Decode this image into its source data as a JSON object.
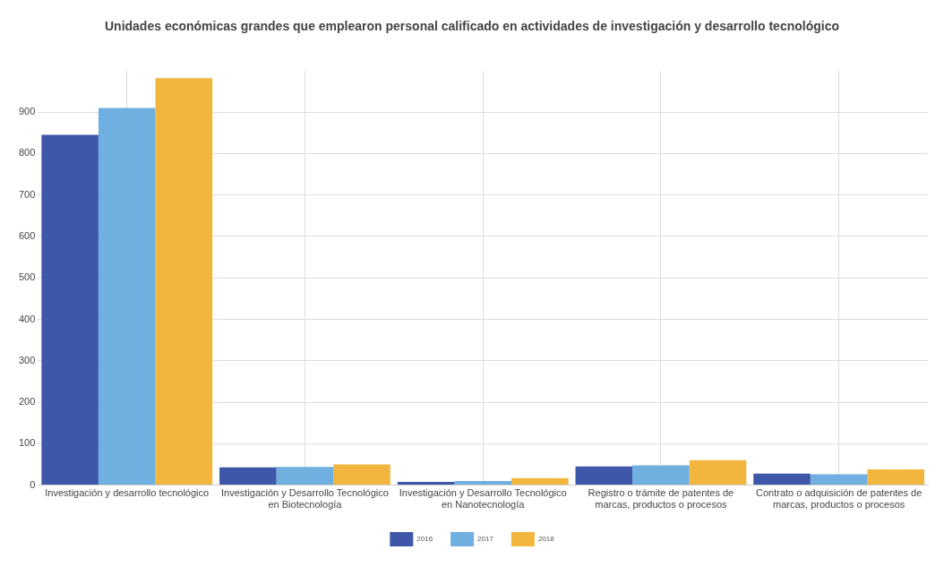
{
  "chart_data": {
    "type": "bar",
    "title": "Unidades económicas grandes que emplearon personal calificado en actividades de investigación y desarrollo tecnológico",
    "categories": [
      "Investigación y desarrollo tecnológico",
      "Investigación y Desarrollo Tecnológico\nen Biotecnología",
      "Investigación y Desarrollo Tecnológico\nen Nanotecnología",
      "Registro o trámite de patentes de\nmarcas, productos o procesos",
      "Contrato o adquisición de patentes de\nmarcas, productos o procesos"
    ],
    "series": [
      {
        "name": "2016",
        "color": "#3f57a9",
        "values": [
          845,
          43,
          8,
          45,
          28
        ]
      },
      {
        "name": "2017",
        "color": "#70b0e0",
        "values": [
          910,
          44,
          10,
          48,
          26
        ]
      },
      {
        "name": "2018",
        "color": "#f2b63f",
        "values": [
          982,
          50,
          17,
          60,
          38
        ]
      }
    ],
    "ylim": [
      0,
      1000
    ],
    "yticks": [
      0,
      100,
      200,
      300,
      400,
      500,
      600,
      700,
      800,
      900
    ],
    "grid": true,
    "legend": "bottom"
  }
}
